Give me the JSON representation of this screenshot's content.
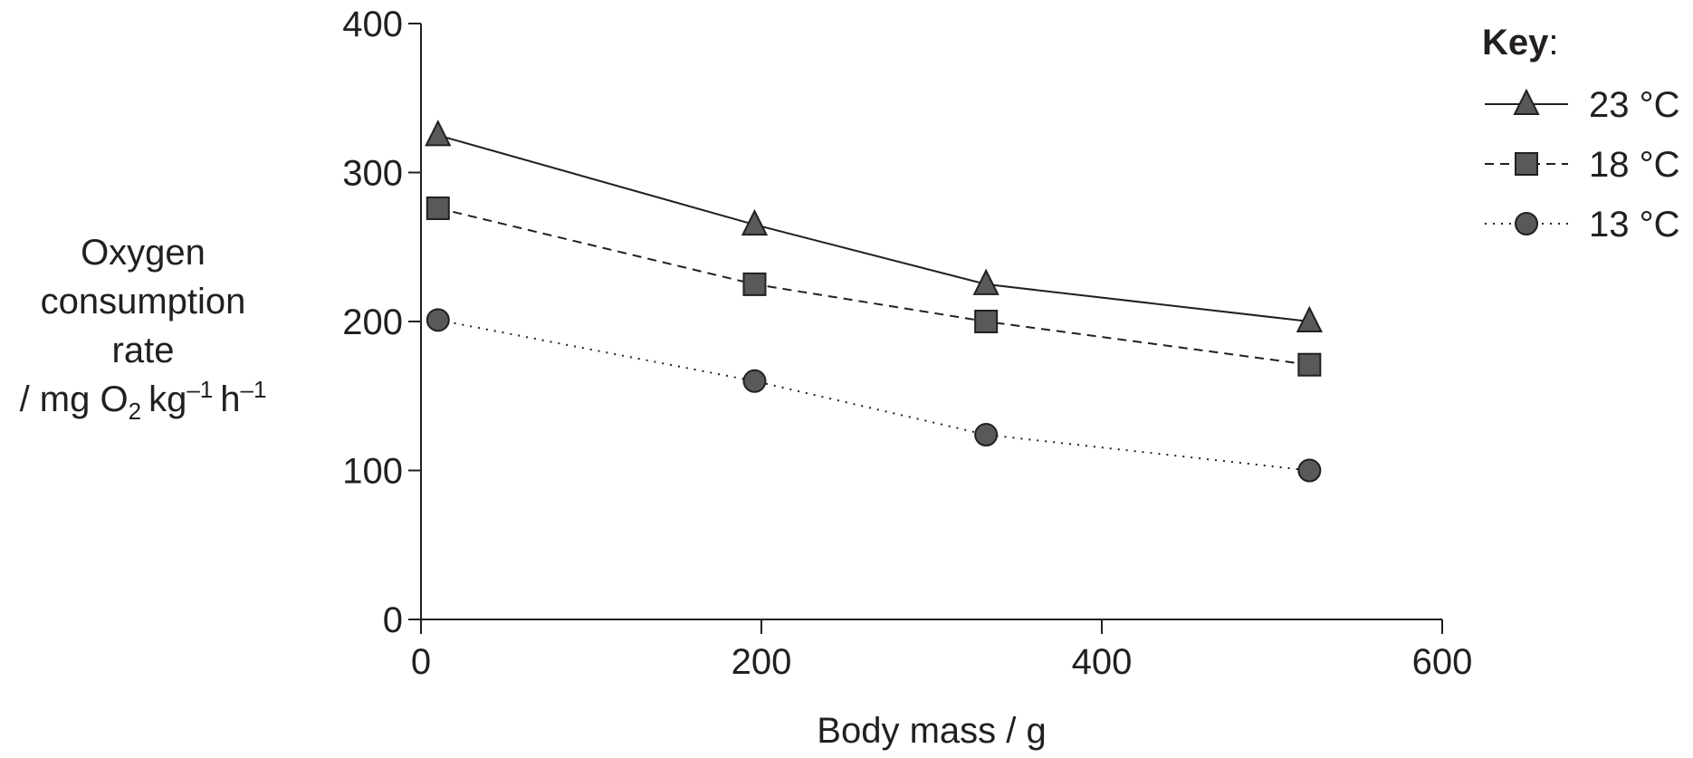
{
  "chart_data": {
    "type": "line",
    "xlabel": "Body mass / g",
    "ylabel": {
      "lines": [
        "Oxygen",
        "consumption",
        "rate"
      ],
      "units_prefix": "/ mg O",
      "units_o_sub": "2",
      "units_kg": "kg",
      "units_kg_sup": "–1",
      "units_h": "h",
      "units_h_sup": "–1"
    },
    "xlim": [
      0,
      600
    ],
    "ylim": [
      0,
      400
    ],
    "x_ticks": [
      0,
      200,
      400,
      600
    ],
    "y_ticks": [
      0,
      100,
      200,
      300,
      400
    ],
    "grid": false,
    "legend": {
      "title": "Key",
      "title_suffix": ":",
      "placement": "top-right"
    },
    "series": [
      {
        "name": "23 °C",
        "marker": "triangle",
        "line": "solid",
        "x": [
          10,
          196,
          332,
          522
        ],
        "values": [
          325,
          265,
          225,
          200
        ]
      },
      {
        "name": "18 °C",
        "marker": "square",
        "line": "dashed",
        "x": [
          10,
          196,
          332,
          522
        ],
        "values": [
          276,
          225,
          200,
          171
        ]
      },
      {
        "name": "13 °C",
        "marker": "circle",
        "line": "dotted",
        "x": [
          10,
          196,
          332,
          522
        ],
        "values": [
          201,
          160,
          124,
          100
        ]
      }
    ],
    "colors": {
      "ink": "#231f20",
      "marker_fill": "#58595b"
    }
  }
}
